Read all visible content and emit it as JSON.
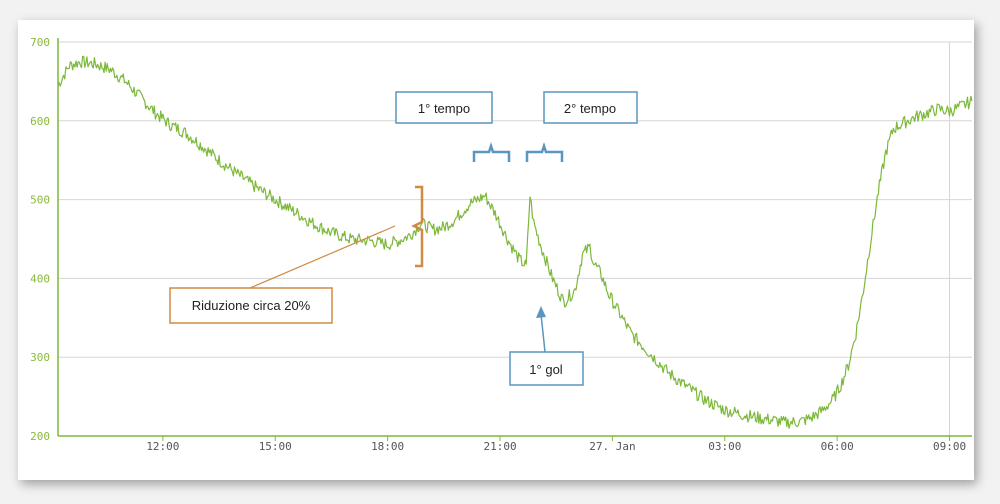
{
  "chart_data": {
    "type": "line",
    "y_ticks": [
      200,
      300,
      400,
      500,
      600,
      700
    ],
    "ylim": [
      200,
      700
    ],
    "x_ticks": [
      "12:00",
      "15:00",
      "18:00",
      "21:00",
      "27. Jan",
      "03:00",
      "06:00",
      "09:00"
    ],
    "x_tick_hours": [
      12,
      15,
      18,
      21,
      24,
      27,
      30,
      33
    ],
    "xlim_hours": [
      9.2,
      33.6
    ],
    "grid": true,
    "series": [
      {
        "color": "#7cb83a",
        "x_hours": [
          9.2,
          9.5,
          9.8,
          10.2,
          10.6,
          11.0,
          11.4,
          11.8,
          12.2,
          12.6,
          13.0,
          13.5,
          14.0,
          14.5,
          15.0,
          15.5,
          16.0,
          16.5,
          17.0,
          17.5,
          18.0,
          18.3,
          18.6,
          18.9,
          19.2,
          19.5,
          19.8,
          20.2,
          20.6,
          20.9,
          21.2,
          21.5,
          21.7,
          21.8,
          21.9,
          22.1,
          22.4,
          22.7,
          23.0,
          23.2,
          23.4,
          23.5,
          23.7,
          23.9,
          24.2,
          24.5,
          25.0,
          25.5,
          26.0,
          26.5,
          27.0,
          27.5,
          28.0,
          28.3,
          28.6,
          29.0,
          29.3,
          29.6,
          29.9,
          30.1,
          30.3,
          30.5,
          30.7,
          30.9,
          31.1,
          31.3,
          31.5,
          31.8,
          32.1,
          32.4,
          32.7,
          33.0,
          33.3,
          33.6
        ],
        "y": [
          645,
          670,
          675,
          672,
          665,
          650,
          630,
          610,
          595,
          585,
          570,
          550,
          532,
          515,
          500,
          485,
          470,
          458,
          450,
          448,
          443,
          448,
          455,
          470,
          462,
          465,
          475,
          495,
          505,
          480,
          450,
          425,
          415,
          505,
          470,
          440,
          400,
          370,
          385,
          430,
          440,
          420,
          405,
          380,
          355,
          330,
          305,
          280,
          262,
          245,
          233,
          227,
          222,
          220,
          217,
          218,
          223,
          232,
          247,
          265,
          290,
          330,
          385,
          450,
          510,
          560,
          590,
          598,
          605,
          610,
          615,
          612,
          618,
          625
        ]
      }
    ],
    "annotations": {
      "riduzione": "Riduzione circa 20%",
      "primo_tempo": "1° tempo",
      "secondo_tempo": "2° tempo",
      "primo_gol": "1° gol"
    }
  }
}
